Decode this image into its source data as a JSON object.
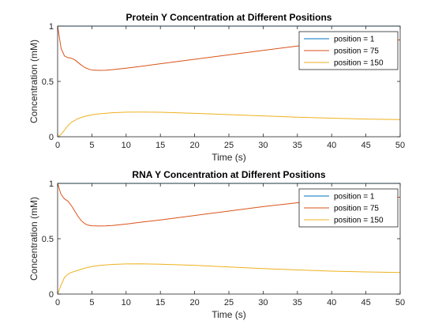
{
  "chart_data": [
    {
      "type": "line",
      "title": "Protein Y Concentration at Different Positions",
      "xlabel": "Time (s)",
      "ylabel": "Concentration (mM)",
      "xlim": [
        0,
        50
      ],
      "ylim": [
        0,
        1
      ],
      "xticks": [
        "0",
        "5",
        "10",
        "15",
        "20",
        "25",
        "30",
        "35",
        "40",
        "45",
        "50"
      ],
      "yticks": [
        "0",
        "0.5",
        "1"
      ],
      "legend_position": "top-right",
      "grid": false,
      "series": [
        {
          "name": "position = 1",
          "color": "#0072BD",
          "x": [
            0,
            50
          ],
          "y": [
            1,
            1
          ]
        },
        {
          "name": "position = 75",
          "color": "#D95319",
          "x": [
            0,
            0.5,
            1,
            1.5,
            2,
            2.5,
            3,
            3.5,
            4,
            4.5,
            5,
            6,
            7,
            8,
            10,
            12,
            15,
            20,
            25,
            30,
            35,
            40,
            45,
            50
          ],
          "y": [
            1,
            0.8,
            0.73,
            0.715,
            0.71,
            0.695,
            0.67,
            0.645,
            0.625,
            0.612,
            0.603,
            0.6,
            0.601,
            0.606,
            0.62,
            0.635,
            0.66,
            0.7,
            0.74,
            0.78,
            0.82,
            0.85,
            0.87,
            0.875
          ]
        },
        {
          "name": "position = 150",
          "color": "#EDB120",
          "x": [
            0,
            0.5,
            1,
            1.5,
            2,
            3,
            4,
            5,
            6,
            8,
            10,
            12,
            15,
            20,
            25,
            30,
            35,
            40,
            45,
            50
          ],
          "y": [
            0,
            0.02,
            0.06,
            0.1,
            0.13,
            0.165,
            0.185,
            0.198,
            0.207,
            0.217,
            0.222,
            0.223,
            0.221,
            0.212,
            0.2,
            0.188,
            0.177,
            0.168,
            0.16,
            0.155
          ]
        }
      ]
    },
    {
      "type": "line",
      "title": "RNA Y Concentration at Different Positions",
      "xlabel": "Time (s)",
      "ylabel": "Concentration (mM)",
      "xlim": [
        0,
        50
      ],
      "ylim": [
        0,
        1
      ],
      "xticks": [
        "0",
        "5",
        "10",
        "15",
        "20",
        "25",
        "30",
        "35",
        "40",
        "45",
        "50"
      ],
      "yticks": [
        "0",
        "0.5",
        "1"
      ],
      "legend_position": "top-right",
      "grid": false,
      "series": [
        {
          "name": "position = 1",
          "color": "#0072BD",
          "x": [
            0,
            50
          ],
          "y": [
            1,
            1
          ]
        },
        {
          "name": "position = 75",
          "color": "#D95319",
          "x": [
            0,
            0.5,
            1,
            1.5,
            2,
            2.5,
            3,
            3.5,
            4,
            4.5,
            5,
            6,
            7,
            8,
            10,
            12,
            15,
            20,
            25,
            30,
            35,
            40,
            45,
            50
          ],
          "y": [
            1,
            0.9,
            0.86,
            0.84,
            0.8,
            0.75,
            0.7,
            0.66,
            0.635,
            0.622,
            0.617,
            0.615,
            0.616,
            0.62,
            0.632,
            0.648,
            0.67,
            0.71,
            0.75,
            0.79,
            0.825,
            0.855,
            0.87,
            0.875
          ]
        },
        {
          "name": "position = 150",
          "color": "#EDB120",
          "x": [
            0,
            0.5,
            1,
            1.5,
            2,
            3,
            4,
            5,
            6,
            8,
            10,
            12,
            15,
            20,
            25,
            30,
            35,
            40,
            45,
            50
          ],
          "y": [
            0,
            0.08,
            0.15,
            0.18,
            0.195,
            0.215,
            0.235,
            0.248,
            0.258,
            0.268,
            0.272,
            0.273,
            0.27,
            0.26,
            0.245,
            0.23,
            0.218,
            0.207,
            0.2,
            0.195
          ]
        }
      ]
    }
  ]
}
